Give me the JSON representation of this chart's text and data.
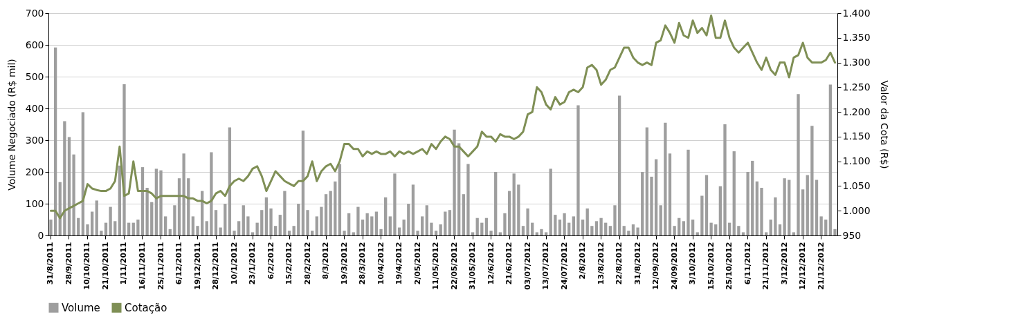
{
  "chart_data": {
    "type": "bar",
    "categories": [
      "31/8/2011",
      null,
      null,
      null,
      "28/9/2011",
      null,
      null,
      null,
      "10/10/2011",
      null,
      null,
      null,
      "21/10/2011",
      null,
      null,
      null,
      "1/11/2011",
      null,
      null,
      null,
      "16/11/2011",
      null,
      null,
      null,
      "25/11/2011",
      null,
      null,
      null,
      "6/12/2011",
      null,
      null,
      null,
      "19/12/2011",
      null,
      null,
      null,
      "28/12/2011",
      null,
      null,
      null,
      "10/1/2012",
      null,
      null,
      null,
      "23/1/2012",
      null,
      null,
      null,
      "6/2/2012",
      null,
      null,
      null,
      "15/2/2012",
      null,
      null,
      null,
      "28/2/2012",
      null,
      null,
      null,
      "8/3/2012",
      null,
      null,
      null,
      "19/3/2012",
      null,
      null,
      null,
      "28/3/2012",
      null,
      null,
      null,
      "10/4/2012",
      null,
      null,
      null,
      "19/4/2012",
      null,
      null,
      null,
      "2/05/2012",
      null,
      null,
      null,
      "11/05/2012",
      null,
      null,
      null,
      "22/05/2012",
      null,
      null,
      null,
      "31/05/2012",
      null,
      null,
      null,
      "12/6/2012",
      null,
      null,
      null,
      "21/6/2012",
      null,
      null,
      null,
      "03/07/2012",
      null,
      null,
      null,
      "13/07/2012",
      null,
      null,
      null,
      "24/07/2012",
      null,
      null,
      null,
      "2/8/2012",
      null,
      null,
      null,
      "13/8/2012",
      null,
      null,
      null,
      "22/8/2012",
      null,
      null,
      null,
      "31/8/2012",
      null,
      null,
      null,
      "12/09/2012",
      null,
      null,
      null,
      "24/09/2012",
      null,
      null,
      null,
      "3/10/2012",
      null,
      null,
      null,
      "15/10/2012",
      null,
      null,
      null,
      "25/10/2012",
      null,
      null,
      null,
      "6/11/2012",
      null,
      null,
      null,
      "21/11/2012",
      null,
      null,
      null,
      "3/12/2012",
      null,
      null,
      null,
      "12/12/2012",
      null,
      null,
      null,
      "21/12/2012",
      null,
      null,
      null
    ],
    "series": [
      {
        "name": "Volume",
        "color": "#9e9e9e",
        "values": [
          50,
          592,
          168,
          360,
          310,
          255,
          55,
          388,
          35,
          75,
          110,
          15,
          40,
          90,
          45,
          220,
          476,
          40,
          40,
          50,
          215,
          150,
          105,
          210,
          205,
          60,
          20,
          95,
          180,
          258,
          180,
          60,
          30,
          140,
          45,
          262,
          80,
          25,
          100,
          340,
          15,
          45,
          95,
          60,
          10,
          40,
          80,
          120,
          85,
          30,
          65,
          140,
          15,
          30,
          100,
          330,
          80,
          15,
          60,
          90,
          130,
          140,
          170,
          225,
          15,
          70,
          10,
          90,
          50,
          70,
          60,
          75,
          20,
          120,
          60,
          195,
          25,
          50,
          100,
          160,
          15,
          60,
          95,
          40,
          15,
          35,
          75,
          80,
          333,
          290,
          130,
          225,
          10,
          55,
          40,
          55,
          15,
          200,
          10,
          70,
          140,
          195,
          160,
          30,
          85,
          40,
          10,
          20,
          10,
          210,
          65,
          50,
          70,
          40,
          60,
          410,
          50,
          85,
          30,
          45,
          55,
          40,
          30,
          95,
          440,
          30,
          15,
          35,
          25,
          200,
          340,
          185,
          240,
          95,
          355,
          258,
          30,
          55,
          45,
          270,
          50,
          10,
          125,
          190,
          40,
          35,
          155,
          350,
          40,
          265,
          30,
          10,
          200,
          235,
          170,
          150,
          10,
          50,
          120,
          35,
          180,
          175,
          10,
          445,
          145,
          190,
          345,
          175,
          60,
          50,
          475,
          20
        ]
      },
      {
        "name": "Cotação",
        "type": "line",
        "axis": "y2",
        "color": "#7f8f55",
        "values": [
          1000,
          1000,
          985,
          1000,
          1005,
          1010,
          1015,
          1020,
          1054,
          1045,
          1042,
          1040,
          1040,
          1045,
          1060,
          1130,
          1030,
          1035,
          1100,
          1040,
          1040,
          1040,
          1035,
          1025,
          1030,
          1030,
          1030,
          1030,
          1030,
          1030,
          1025,
          1025,
          1020,
          1020,
          1015,
          1020,
          1035,
          1040,
          1030,
          1050,
          1060,
          1065,
          1060,
          1070,
          1085,
          1090,
          1070,
          1040,
          1060,
          1080,
          1070,
          1060,
          1055,
          1050,
          1060,
          1060,
          1070,
          1100,
          1060,
          1080,
          1090,
          1095,
          1080,
          1100,
          1135,
          1135,
          1125,
          1125,
          1110,
          1120,
          1115,
          1120,
          1115,
          1115,
          1120,
          1110,
          1120,
          1115,
          1120,
          1115,
          1120,
          1125,
          1115,
          1135,
          1125,
          1140,
          1150,
          1145,
          1130,
          1130,
          1120,
          1110,
          1120,
          1130,
          1160,
          1150,
          1150,
          1140,
          1155,
          1150,
          1150,
          1145,
          1150,
          1160,
          1195,
          1200,
          1250,
          1240,
          1215,
          1205,
          1230,
          1215,
          1220,
          1240,
          1245,
          1240,
          1250,
          1290,
          1295,
          1285,
          1255,
          1265,
          1285,
          1290,
          1310,
          1330,
          1330,
          1310,
          1300,
          1295,
          1300,
          1295,
          1340,
          1345,
          1375,
          1360,
          1340,
          1380,
          1355,
          1350,
          1385,
          1360,
          1370,
          1355,
          1395,
          1350,
          1350,
          1385,
          1350,
          1330,
          1320,
          1330,
          1340,
          1320,
          1300,
          1285,
          1310,
          1285,
          1275,
          1300,
          1300,
          1270,
          1310,
          1315,
          1340,
          1310,
          1300,
          1300,
          1300,
          1305,
          1320,
          1300
        ]
      }
    ],
    "ylabel": "Volume Negociado (R$ mil)",
    "y2label": "Valor da Cota (R$)",
    "ylim": [
      0,
      700
    ],
    "yticks": [
      0,
      100,
      200,
      300,
      400,
      500,
      600,
      700
    ],
    "y2lim": [
      950,
      1400
    ],
    "y2ticks": [
      950,
      {
        "value": 1000,
        "label": "1.000"
      },
      {
        "value": 1050,
        "label": "1.050"
      },
      {
        "value": 1100,
        "label": "1.100"
      },
      {
        "value": 1150,
        "label": "1.150"
      },
      {
        "value": 1200,
        "label": "1.200"
      },
      {
        "value": 1250,
        "label": "1.250"
      },
      {
        "value": 1300,
        "label": "1.300"
      },
      {
        "value": 1350,
        "label": "1.350"
      },
      {
        "value": 1400,
        "label": "1.400"
      }
    ],
    "grid": "y",
    "legend": "bottom"
  }
}
